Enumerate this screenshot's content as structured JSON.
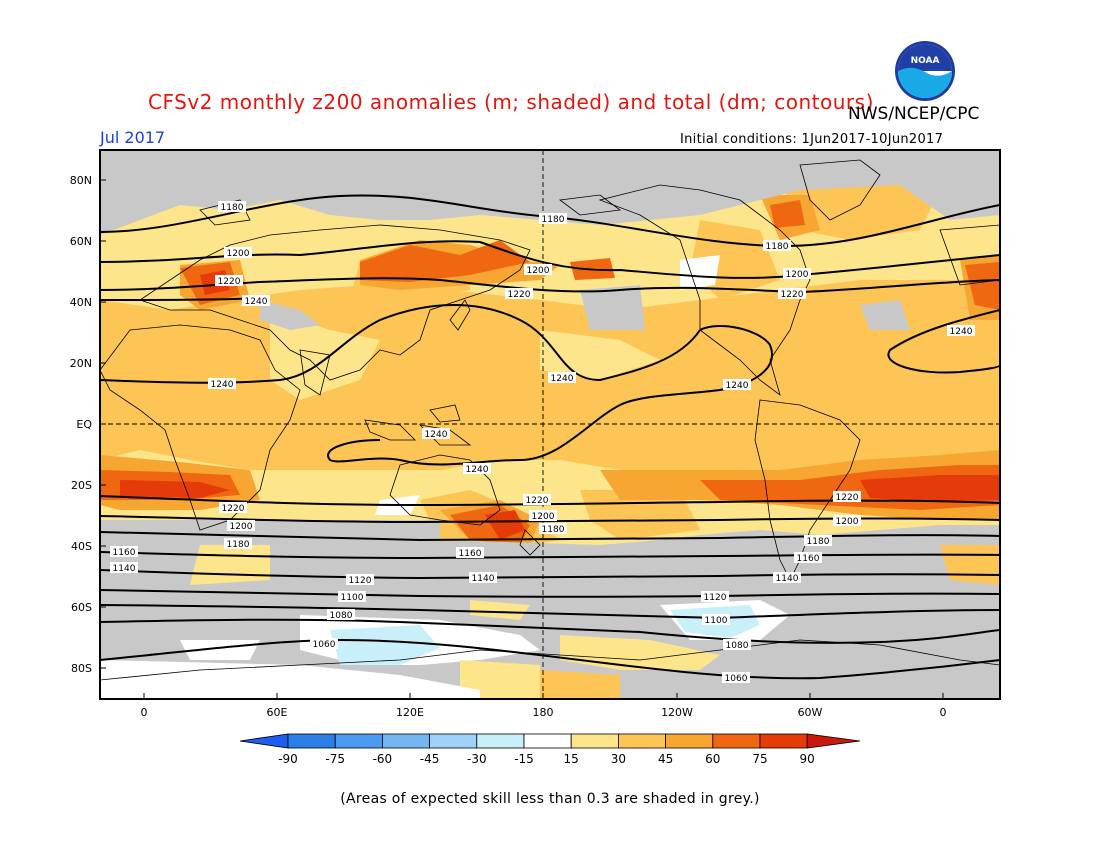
{
  "header": {
    "title": "CFSv2 monthly z200 anomalies (m; shaded) and total (dm; contours)",
    "agency": "NWS/NCEP/CPC",
    "month": "Jul 2017",
    "initial_conditions": "Initial conditions: 1Jun2017-10Jun2017"
  },
  "logo": {
    "text": "NOAA",
    "icon": "noaa-logo"
  },
  "map": {
    "lat_labels": [
      "80N",
      "60N",
      "40N",
      "20N",
      "EQ",
      "20S",
      "40S",
      "60S",
      "80S"
    ],
    "lon_labels": [
      "0",
      "60E",
      "120E",
      "180",
      "120W",
      "60W",
      "0"
    ],
    "contour_labels": [
      "1180",
      "1180",
      "1200",
      "1220",
      "1240",
      "1200",
      "1220",
      "1180",
      "1200",
      "1220",
      "1240",
      "1240",
      "1240",
      "1240",
      "1240",
      "1240",
      "1220",
      "1200",
      "1180",
      "1160",
      "1140",
      "1220",
      "1200",
      "1180",
      "1160",
      "1220",
      "1200",
      "1180",
      "1160",
      "1140",
      "1120",
      "1100",
      "1140",
      "1080",
      "1060",
      "1120",
      "1100",
      "1080",
      "1060"
    ]
  },
  "colorbar": {
    "ticks": [
      "-90",
      "-75",
      "-60",
      "-45",
      "-30",
      "-15",
      "15",
      "30",
      "45",
      "60",
      "75",
      "90"
    ],
    "colors": [
      "#1c5ff0",
      "#2d7fe6",
      "#4c9bee",
      "#74b6f2",
      "#9fd2f6",
      "#c9f0f8",
      "#ffffff",
      "#fde58c",
      "#fcc556",
      "#f8a632",
      "#f06712",
      "#e53a0a",
      "#c9180c"
    ]
  },
  "footnote": "(Areas of expected skill less than 0.3 are shaded in grey.)"
}
